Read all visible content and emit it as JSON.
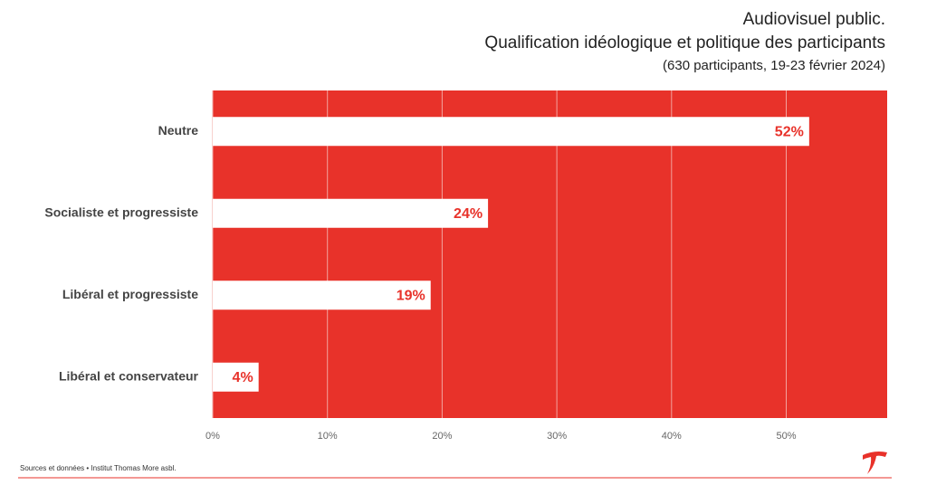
{
  "chart_data": {
    "type": "barh",
    "title": [
      "Audiovisuel public.",
      "Qualification idéologique et politique des participants"
    ],
    "subtitle": "(630 participants, 19-23 février 2024)",
    "categories": [
      "Neutre",
      "Socialiste et progressiste",
      "Libéral et progressiste",
      "Libéral et conservateur"
    ],
    "values": [
      52,
      24,
      19,
      4
    ],
    "value_labels": [
      "52%",
      "24%",
      "19%",
      "4%"
    ],
    "color": "#ffffff",
    "background": "#e8322a",
    "label_color": "#e8322a",
    "xlim": [
      0,
      58.8
    ],
    "xticks": [
      {
        "value": 0,
        "label": "0%"
      },
      {
        "value": 10,
        "label": "10%"
      },
      {
        "value": 20,
        "label": "20%"
      },
      {
        "value": 30,
        "label": "30%"
      },
      {
        "value": 40,
        "label": "40%"
      },
      {
        "value": 50,
        "label": "50%"
      }
    ],
    "grid": true,
    "source": "Sources et données • Institut Thomas More asbl."
  }
}
